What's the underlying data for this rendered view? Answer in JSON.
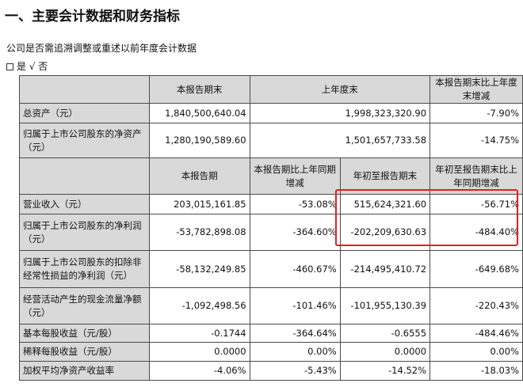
{
  "section_title": "一、主要会计数据和财务指标",
  "question": "公司是否需追溯调整或重述以前年度会计数据",
  "answer": "是 √ 否",
  "table_top": {
    "headers": [
      "",
      "本报告期末",
      "上年度末",
      "本报告期末比上年度末增减"
    ],
    "rows": [
      {
        "label": "总资产（元）",
        "values": [
          "1,840,500,640.04",
          "1,998,323,320.90",
          "-7.90%"
        ]
      },
      {
        "label": "归属于上市公司股东的净资产（元）",
        "values": [
          "1,280,190,589.60",
          "1,501,657,733.58",
          "-14.75%"
        ]
      }
    ]
  },
  "table_bottom": {
    "headers": [
      "",
      "本报告期",
      "本报告期比上年同期增减",
      "年初至报告期末",
      "年初至报告期末比上年同期增减"
    ],
    "rows": [
      {
        "label": "营业收入（元）",
        "values": [
          "203,015,161.85",
          "-53.08%",
          "515,624,321.60",
          "-56.71%"
        ]
      },
      {
        "label": "归属于上市公司股东的净利润（元）",
        "values": [
          "-53,782,898.08",
          "-364.60%",
          "-202,209,630.63",
          "-484.40%"
        ]
      },
      {
        "label": "归属于上市公司股东的扣除非经常性损益的净利润（元）",
        "values": [
          "-58,132,249.85",
          "-460.67%",
          "-214,495,410.72",
          "-649.68%"
        ]
      },
      {
        "label": "经营活动产生的现金流量净额（元）",
        "values": [
          "-1,092,498.56",
          "-101.46%",
          "-101,955,130.39",
          "-220.43%"
        ]
      },
      {
        "label": "基本每股收益（元/股）",
        "values": [
          "-0.1744",
          "-364.64%",
          "-0.6555",
          "-484.46%"
        ]
      },
      {
        "label": "稀释每股收益（元/股）",
        "values": [
          "0.0000",
          "0.00%",
          "0.0000",
          "0.00%"
        ]
      },
      {
        "label": "加权平均净资产收益率",
        "values": [
          "-4.06%",
          "-5.43%",
          "-14.52%",
          "-18.03%"
        ]
      }
    ]
  }
}
